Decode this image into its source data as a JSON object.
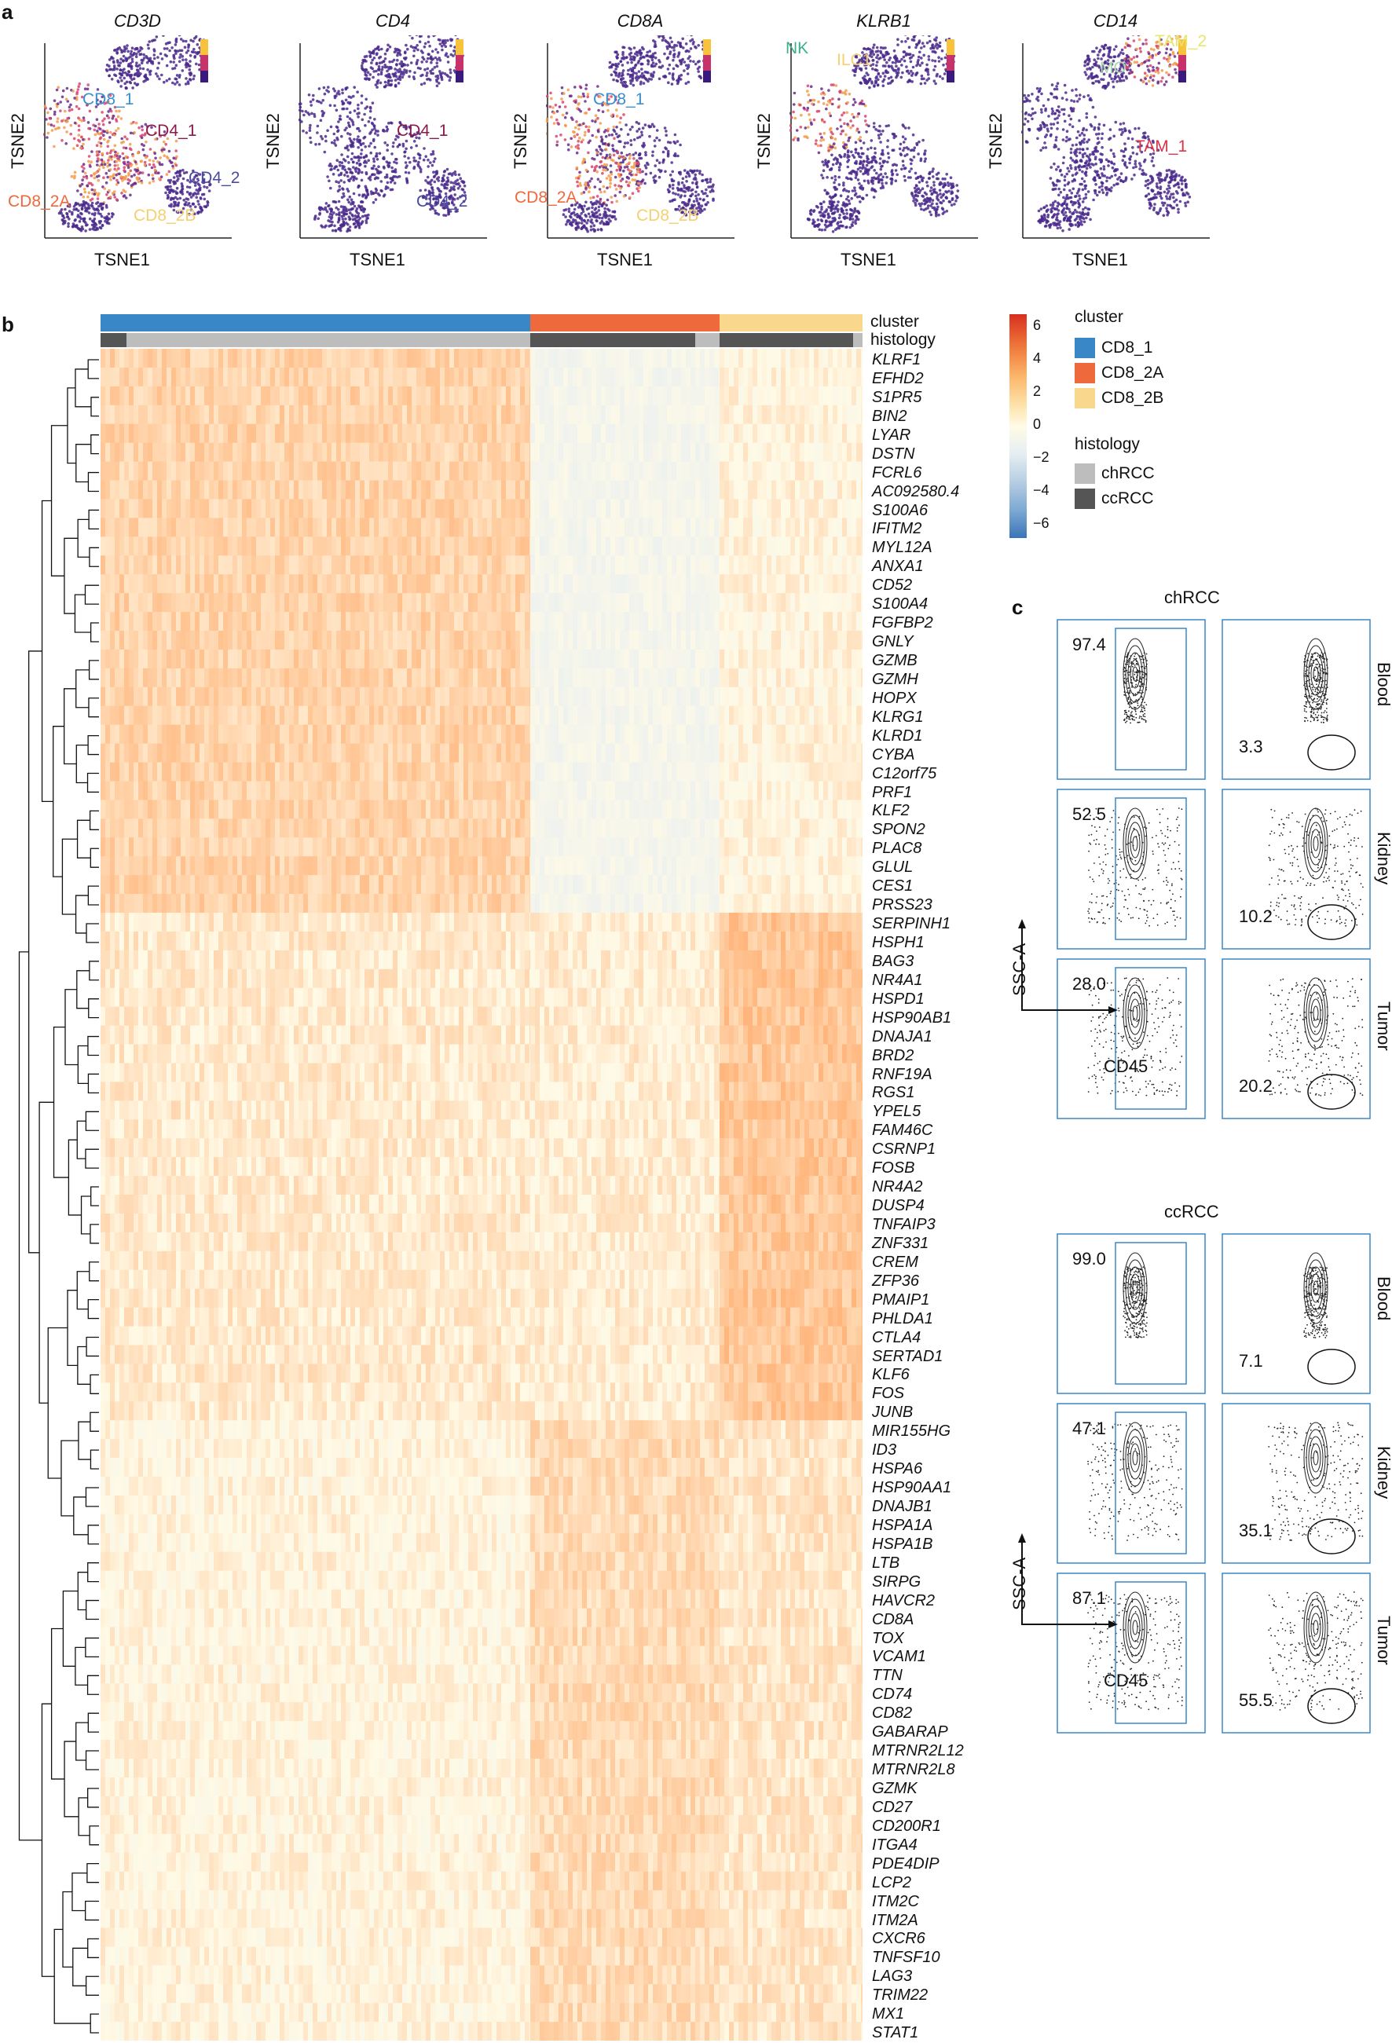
{
  "panel_a": {
    "letter": "a",
    "plots": [
      {
        "gene": "CD3D",
        "labels": [
          "CD8_1",
          "CD4_1",
          "CD4_2",
          "CD8_2A",
          "CD8_2B"
        ]
      },
      {
        "gene": "CD4",
        "labels": [
          "CD4_1",
          "CD4_2"
        ]
      },
      {
        "gene": "CD8A",
        "labels": [
          "CD8_1",
          "CD8_2A",
          "CD8_2B"
        ]
      },
      {
        "gene": "KLRB1",
        "labels": [
          "NK",
          "ILC1"
        ]
      },
      {
        "gene": "CD14",
        "labels": [
          "TAM_2",
          "MO",
          "TAM_1"
        ]
      }
    ],
    "xlabel": "TSNE1",
    "ylabel": "TSNE2"
  },
  "panel_b": {
    "letter": "b",
    "track_cluster": "cluster",
    "track_histology": "histology",
    "genes": [
      "KLRF1",
      "EFHD2",
      "S1PR5",
      "BIN2",
      "LYAR",
      "DSTN",
      "FCRL6",
      "AC092580.4",
      "S100A6",
      "IFITM2",
      "MYL12A",
      "ANXA1",
      "CD52",
      "S100A4",
      "FGFBP2",
      "GNLY",
      "GZMB",
      "GZMH",
      "HOPX",
      "KLRG1",
      "KLRD1",
      "CYBA",
      "C12orf75",
      "PRF1",
      "KLF2",
      "SPON2",
      "PLAC8",
      "GLUL",
      "CES1",
      "PRSS23",
      "SERPINH1",
      "HSPH1",
      "BAG3",
      "NR4A1",
      "HSPD1",
      "HSP90AB1",
      "DNAJA1",
      "BRD2",
      "RNF19A",
      "RGS1",
      "YPEL5",
      "FAM46C",
      "CSRNP1",
      "FOSB",
      "NR4A2",
      "DUSP4",
      "TNFAIP3",
      "ZNF331",
      "CREM",
      "ZFP36",
      "PMAIP1",
      "PHLDA1",
      "CTLA4",
      "SERTAD1",
      "KLF6",
      "FOS",
      "JUNB",
      "MIR155HG",
      "ID3",
      "HSPA6",
      "HSP90AA1",
      "DNAJB1",
      "HSPA1A",
      "HSPA1B",
      "LTB",
      "SIRPG",
      "HAVCR2",
      "CD8A",
      "TOX",
      "VCAM1",
      "TTN",
      "CD74",
      "CD82",
      "GABARAP",
      "MTRNR2L12",
      "MTRNR2L8",
      "GZMK",
      "CD27",
      "CD200R1",
      "ITGA4",
      "PDE4DIP",
      "LCP2",
      "ITM2C",
      "ITM2A",
      "CXCR6",
      "TNFSF10",
      "LAG3",
      "TRIM22",
      "MX1",
      "STAT1"
    ],
    "colorbar_ticks": [
      "6",
      "4",
      "2",
      "0",
      "−2",
      "−4",
      "−6"
    ],
    "legend": {
      "cluster_title": "cluster",
      "clusters": [
        {
          "name": "CD8_1",
          "color": "#3a87c8"
        },
        {
          "name": "CD8_2A",
          "color": "#ee6a3c"
        },
        {
          "name": "CD8_2B",
          "color": "#f9d78c"
        }
      ],
      "histology_title": "histology",
      "histologies": [
        {
          "name": "chRCC",
          "color": "#bdbdbd"
        },
        {
          "name": "ccRCC",
          "color": "#555555"
        }
      ]
    }
  },
  "panel_c": {
    "letter": "c",
    "groups": [
      {
        "title": "chRCC",
        "rows": [
          {
            "tissue": "Blood",
            "left": "97.4",
            "right": "3.3"
          },
          {
            "tissue": "Kidney",
            "left": "52.5",
            "right": "10.2"
          },
          {
            "tissue": "Tumor",
            "left": "28.0",
            "right": "20.2"
          }
        ]
      },
      {
        "title": "ccRCC",
        "rows": [
          {
            "tissue": "Blood",
            "left": "99.0",
            "right": "7.1"
          },
          {
            "tissue": "Kidney",
            "left": "47.1",
            "right": "35.1"
          },
          {
            "tissue": "Tumor",
            "left": "87.1",
            "right": "55.5"
          }
        ]
      }
    ],
    "yaxis": "SSC-A",
    "xaxis": "CD45"
  }
}
